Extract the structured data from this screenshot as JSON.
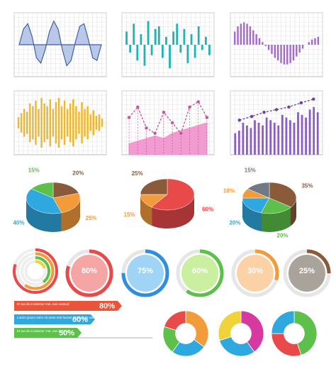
{
  "chart_data": [
    {
      "type": "line",
      "color": "#3f5fa8",
      "fill": "#b9c8e6",
      "ylim": [
        -1,
        1
      ],
      "values": [
        0,
        0.6,
        0.8,
        0.3,
        -0.5,
        -0.7,
        -0.2,
        0.5,
        0.9,
        0.6,
        -0.2,
        -0.8,
        -0.6,
        0.1,
        0.7,
        0.8,
        0.2,
        -0.5,
        -0.6,
        0
      ]
    },
    {
      "type": "bar",
      "color": "#1fb3b3",
      "ylim": [
        -1,
        1
      ],
      "values": [
        0.5,
        -0.3,
        0.8,
        -0.6,
        0.4,
        -0.8,
        0.9,
        -0.4,
        0.6,
        0.7,
        -0.5,
        0.3,
        -0.9,
        0.5,
        0.8,
        -0.3,
        0.6,
        -0.7,
        0.4,
        -0.5,
        0.7,
        -0.2,
        0.3,
        -0.4
      ]
    },
    {
      "type": "bar",
      "color": "#a26bc9",
      "ylim": [
        -1,
        1
      ],
      "values": [
        0.5,
        0.7,
        0.8,
        0.85,
        0.8,
        0.7,
        0.55,
        0.4,
        0.25,
        0.1,
        -0.05,
        -0.2,
        -0.35,
        -0.5,
        -0.6,
        -0.7,
        -0.75,
        -0.75,
        -0.7,
        -0.6,
        -0.45,
        -0.3,
        -0.15,
        0,
        0.1,
        0.2,
        0.25,
        0.3
      ]
    },
    {
      "type": "wave",
      "color": "#f0b62d",
      "ylim": [
        0,
        1
      ],
      "values": [
        0.2,
        0.35,
        0.5,
        0.4,
        0.7,
        0.6,
        0.8,
        0.5,
        0.9,
        0.7,
        0.6,
        0.85,
        0.5,
        0.75,
        0.9,
        0.6,
        0.8,
        0.5,
        0.7,
        0.85,
        0.6,
        0.4,
        0.75,
        0.5,
        0.6,
        0.3,
        0.45,
        0.25,
        0.3,
        0.15
      ]
    },
    {
      "type": "line",
      "ylim": [
        0,
        1
      ],
      "series": [
        {
          "type": "area",
          "color": "#f19bd0",
          "values": [
            0.1,
            0.15,
            0.2,
            0.25,
            0.2,
            0.3,
            0.35,
            0.4,
            0.45,
            0.5
          ]
        },
        {
          "type": "line",
          "color": "#c0569e",
          "values": [
            0.6,
            0.8,
            0.4,
            0.3,
            0.7,
            0.5,
            0.3,
            0.8,
            0.9,
            0.6
          ]
        }
      ]
    },
    {
      "type": "combo",
      "ylim": [
        0,
        1
      ],
      "series": [
        {
          "type": "bar",
          "color": "#8a5cc7",
          "values": [
            0.3,
            0.35,
            0.5,
            0.45,
            0.4,
            0.55,
            0.5,
            0.45,
            0.6,
            0.55,
            0.5,
            0.45,
            0.65,
            0.6,
            0.55,
            0.5,
            0.7,
            0.65,
            0.6,
            0.75,
            0.8,
            0.7
          ]
        },
        {
          "type": "line",
          "color": "#6a3fa8",
          "values": [
            0.55,
            0.62,
            0.7,
            0.75,
            0.8,
            0.88,
            0.95
          ]
        }
      ]
    },
    {
      "type": "pie",
      "values": [
        20,
        25,
        40,
        15
      ],
      "value_labels": [
        "20%",
        "25%",
        "40%",
        "15%"
      ],
      "colors": [
        "#8a5a3a",
        "#f29b3a",
        "#2fa8e0",
        "#5cc04a"
      ]
    },
    {
      "type": "pie",
      "values": [
        60,
        15,
        25
      ],
      "value_labels": [
        "60%",
        "15%",
        "25%"
      ],
      "colors": [
        "#e84a4a",
        "#f29b3a",
        "#8a5a3a"
      ]
    },
    {
      "type": "pie",
      "values": [
        35,
        20,
        20,
        10,
        15
      ],
      "value_labels": [
        "35%",
        "20%",
        "20%",
        "10%",
        "15%"
      ],
      "colors": [
        "#8a5a3a",
        "#5cc04a",
        "#2fa8e0",
        "#f29b3a",
        "#707a85"
      ]
    },
    {
      "type": "rings",
      "values": [
        80,
        60,
        40,
        20
      ],
      "colors": [
        "#e84a4a",
        "#f29b3a",
        "#5cc04a",
        "#f0d23a"
      ]
    },
    {
      "type": "gauge",
      "values": [
        80
      ],
      "value_labels": [
        "80%"
      ],
      "color": "#e84a4a",
      "fill": "#f6a5a5"
    },
    {
      "type": "gauge",
      "values": [
        75
      ],
      "value_labels": [
        "75%"
      ],
      "color": "#2f8ee0",
      "fill": "#9fd4f6"
    },
    {
      "type": "gauge",
      "values": [
        60
      ],
      "value_labels": [
        "60%"
      ],
      "color": "#5cc04a",
      "fill": "#c9ef9f"
    },
    {
      "type": "gauge",
      "values": [
        30
      ],
      "value_labels": [
        "30%"
      ],
      "color": "#f29b3a",
      "fill": "#fbd2a5"
    },
    {
      "type": "gauge",
      "values": [
        25
      ],
      "value_labels": [
        "25%"
      ],
      "color": "#8a5a3a",
      "fill": "#a9a39b"
    },
    {
      "type": "hbar",
      "xlim": [
        0,
        100
      ],
      "categories": [
        "Et iaculis incidentur mat, eas nostrud",
        "Lorem ipsum dolor sit amet erat fuisset explicari te sea",
        "Et iaculis incidentur mat, eas nostrud"
      ],
      "values": [
        80,
        60,
        50
      ],
      "value_labels": [
        "80%",
        "60%",
        "50%"
      ],
      "colors": [
        "#e8553a",
        "#2fa8e0",
        "#5cc04a"
      ]
    },
    {
      "type": "donut",
      "values": [
        35,
        25,
        20,
        20
      ],
      "colors": [
        "#f29b3a",
        "#2fa8e0",
        "#5cc04a",
        "#e84a4a"
      ]
    },
    {
      "type": "donut",
      "values": [
        40,
        30,
        30
      ],
      "colors": [
        "#d63aa0",
        "#2fa8e0",
        "#f0d23a"
      ]
    },
    {
      "type": "donut",
      "values": [
        45,
        30,
        25
      ],
      "colors": [
        "#5cc04a",
        "#e84a4a",
        "#2fa8e0"
      ]
    }
  ]
}
